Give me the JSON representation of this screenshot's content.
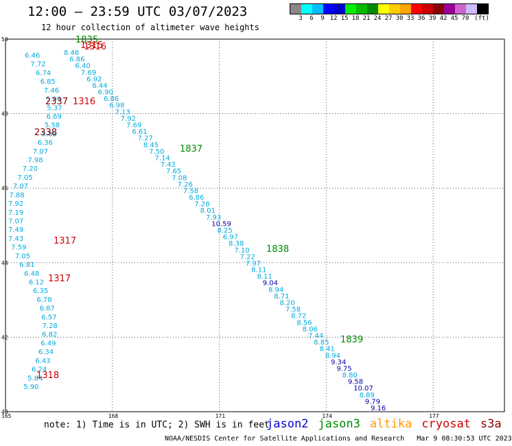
{
  "header": {
    "title": "12:00 – 23:59 UTC 03/07/2023",
    "subtitle": "12 hour collection of altimeter wave heights"
  },
  "legend": {
    "colors": [
      "#888888",
      "#00ffff",
      "#00bfff",
      "#0000ff",
      "#0000cd",
      "#00ee00",
      "#00bb00",
      "#008800",
      "#ffff00",
      "#ffcc00",
      "#ffa500",
      "#ff0000",
      "#cc0000",
      "#880000",
      "#990099",
      "#cc66cc",
      "#ccbbff",
      "#000000"
    ],
    "labels": [
      "3",
      "6",
      "9",
      "12",
      "15",
      "18",
      "21",
      "24",
      "27",
      "30",
      "33",
      "36",
      "39",
      "42",
      "45",
      "70",
      "(ft)"
    ],
    "unit": "(ft)"
  },
  "axes": {
    "lat_labels": [
      "50",
      "48",
      "46",
      "44",
      "42",
      "40"
    ],
    "lon_labels": [
      "165",
      "168",
      "171",
      "174",
      "177"
    ],
    "lat_range": [
      40,
      50
    ],
    "lon_range": [
      165,
      179
    ]
  },
  "track_main": [
    "8.46",
    "6.86",
    "6.40",
    "7.69",
    "6.92",
    "6.44",
    "6.90",
    "6.86",
    "6.98",
    "7.13",
    "7.92",
    "7.69",
    "6.61",
    "7.27",
    "8.45",
    "7.50",
    "7.14",
    "7.42",
    "7.65",
    "7.08",
    "7.26",
    "7.58",
    "6.86",
    "7.28",
    "8.01",
    "7.93",
    "10.59",
    "8.25",
    "6.97",
    "8.38",
    "7.10",
    "7.22",
    "7.97",
    "8.11",
    "8.11",
    "9.04",
    "8.94",
    "8.71",
    "8.20",
    "7.58",
    "8.72",
    "8.56",
    "8.06",
    "7.44",
    "8.85",
    "8.41",
    "8.94",
    "9.34",
    "9.75",
    "8.80",
    "9.58",
    "10.07",
    "8.89",
    "9.79",
    "9.16"
  ],
  "track_west": [
    "6.46",
    "7.72",
    "6.74",
    "6.85",
    "7.46",
    "5.94",
    "5.37",
    "6.69",
    "5.58",
    "5.88",
    "6.36",
    "7.07",
    "7.98",
    "7.20",
    "7.05",
    "7.07",
    "7.88",
    "7.92",
    "7.19",
    "7.07",
    "7.49",
    "7.43",
    "7.59",
    "7.05",
    "6.81",
    "6.48",
    "6.12",
    "6.35",
    "6.78",
    "6.87",
    "6.57",
    "7.28",
    "6.82",
    "6.49",
    "6.34",
    "6.43",
    "6.24",
    "5.84",
    "5.90"
  ],
  "time_labels": [
    {
      "text": "1835",
      "sat": "jason3"
    },
    {
      "text": "1315",
      "sat": "cryosat"
    },
    {
      "text": "1316",
      "sat": "cryosat"
    },
    {
      "text": "2337",
      "sat": "s3a"
    },
    {
      "text": "1316",
      "sat": "cryosat"
    },
    {
      "text": "2338",
      "sat": "s3a"
    },
    {
      "text": "1837",
      "sat": "jason3"
    },
    {
      "text": "1317",
      "sat": "cryosat"
    },
    {
      "text": "1317",
      "sat": "cryosat"
    },
    {
      "text": "1838",
      "sat": "jason3"
    },
    {
      "text": "1839",
      "sat": "jason3"
    },
    {
      "text": "1318",
      "sat": "cryosat"
    }
  ],
  "sat_colors": {
    "jason2": "#0000cc",
    "jason3": "#008800",
    "altika": "#ff9900",
    "cryosat": "#cc0000",
    "s3a": "#880000",
    "track": "#00aadd",
    "track_high": "#0000aa"
  },
  "footer": {
    "note": "note: 1) Time is in UTC; 2) SWH is in feet",
    "satellites": {
      "jason2": "jason2",
      "jason3": "jason3",
      "altika": "altika",
      "cryosat": "cryosat",
      "s3a": "s3a"
    },
    "credit": "NOAA/NESDIS Center for Satellite Applications and Research",
    "timestamp": "Mar  9 08:30:53 UTC 2023"
  }
}
